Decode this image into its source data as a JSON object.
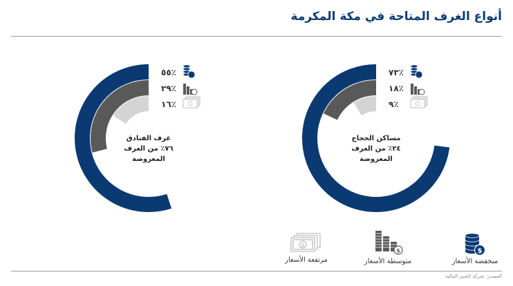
{
  "title": "أنواع الغرف المتاحة في مكة المكرمة",
  "colors": {
    "low": "#0b3a73",
    "mid": "#595959",
    "high": "#d4d4d4",
    "text": "#222222"
  },
  "chart_data": [
    {
      "type": "pie",
      "name": "hotel-rooms",
      "label_line1": "غرف الفنادق",
      "label_line2": "٧٦٪ من الغرف",
      "label_line3": "المعروضة",
      "series": [
        {
          "name": "منخفضة الأسعار",
          "value": 55,
          "label": "٥٥٪"
        },
        {
          "name": "متوسطة الأسعار",
          "value": 29,
          "label": "٢٩٪"
        },
        {
          "name": "مرتفعة الأسعار",
          "value": 16,
          "label": "١٦٪"
        }
      ]
    },
    {
      "type": "pie",
      "name": "pilgrim-housing",
      "label_line1": "مساكن الحجاج",
      "label_line2": "٢٤٪ من الغرف",
      "label_line3": "المعروضة",
      "series": [
        {
          "name": "منخفضة الأسعار",
          "value": 73,
          "label": "٧٣٪"
        },
        {
          "name": "متوسطة الأسعار",
          "value": 18,
          "label": "١٨٪"
        },
        {
          "name": "مرتفعة الأسعار",
          "value": 9,
          "label": "٩٪"
        }
      ]
    }
  ],
  "legend": {
    "low": "منخفضة الأسعار",
    "mid": "متوسطة الأسعار",
    "high": "مرتفعة الأسعار"
  },
  "source": "المصدر: شركة الخبير المالية"
}
